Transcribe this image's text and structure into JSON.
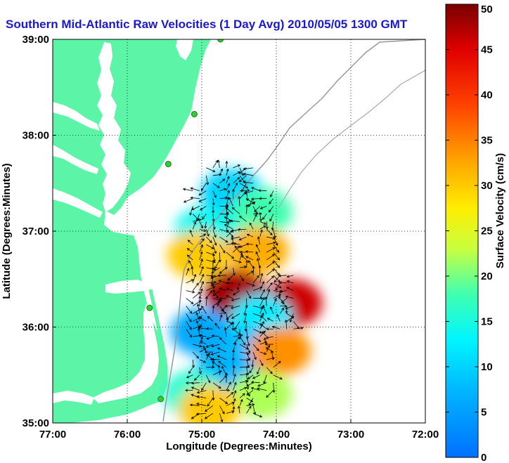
{
  "chart_data": {
    "type": "heatmap",
    "title": "Southern Mid-Atlantic Raw Velocities (1 Day Avg) 2010/05/05 1300 GMT",
    "xlabel": "Longitude (Degrees:Minutes)",
    "ylabel": "Latitude (Degrees:Minutes)",
    "colorbar_label": "Surface Velocity (cm/s)",
    "x_ticks": [
      "77:00",
      "76:00",
      "75:00",
      "74:00",
      "73:00",
      "72:00"
    ],
    "y_ticks": [
      "39:00",
      "38:00",
      "37:00",
      "36:00",
      "35:00"
    ],
    "xlim": [
      -77,
      -72
    ],
    "ylim": [
      35,
      39
    ],
    "colorbar_ticks": [
      0,
      5,
      10,
      15,
      20,
      25,
      30,
      35,
      40,
      45,
      50
    ],
    "clim": [
      0,
      50
    ],
    "grid": true,
    "colors": {
      "land": "#5cf5a8",
      "water": "#ffffff",
      "title": "#1a1acc",
      "station": "#33cc33"
    },
    "stations": [
      {
        "lon": -74.75,
        "lat": 39.0
      },
      {
        "lon": -75.1,
        "lat": 38.22
      },
      {
        "lon": -75.45,
        "lat": 37.7
      },
      {
        "lon": -75.7,
        "lat": 36.2
      },
      {
        "lon": -75.55,
        "lat": 35.25
      }
    ],
    "velocity_patches": [
      {
        "lon": -74.6,
        "lat": 37.4,
        "speed": 10
      },
      {
        "lon": -74.2,
        "lat": 37.2,
        "speed": 18
      },
      {
        "lon": -74.95,
        "lat": 37.0,
        "speed": 14
      },
      {
        "lon": -75.05,
        "lat": 36.75,
        "speed": 30
      },
      {
        "lon": -74.25,
        "lat": 36.8,
        "speed": 32
      },
      {
        "lon": -74.55,
        "lat": 36.35,
        "speed": 48
      },
      {
        "lon": -73.8,
        "lat": 36.25,
        "speed": 46
      },
      {
        "lon": -74.2,
        "lat": 36.1,
        "speed": 12
      },
      {
        "lon": -75.0,
        "lat": 35.95,
        "speed": 6
      },
      {
        "lon": -74.3,
        "lat": 35.75,
        "speed": 8
      },
      {
        "lon": -73.95,
        "lat": 35.75,
        "speed": 34
      },
      {
        "lon": -74.7,
        "lat": 35.5,
        "speed": 7
      },
      {
        "lon": -75.1,
        "lat": 35.3,
        "speed": 16
      },
      {
        "lon": -74.2,
        "lat": 35.3,
        "speed": 22
      },
      {
        "lon": -74.9,
        "lat": 35.15,
        "speed": 30
      }
    ]
  }
}
